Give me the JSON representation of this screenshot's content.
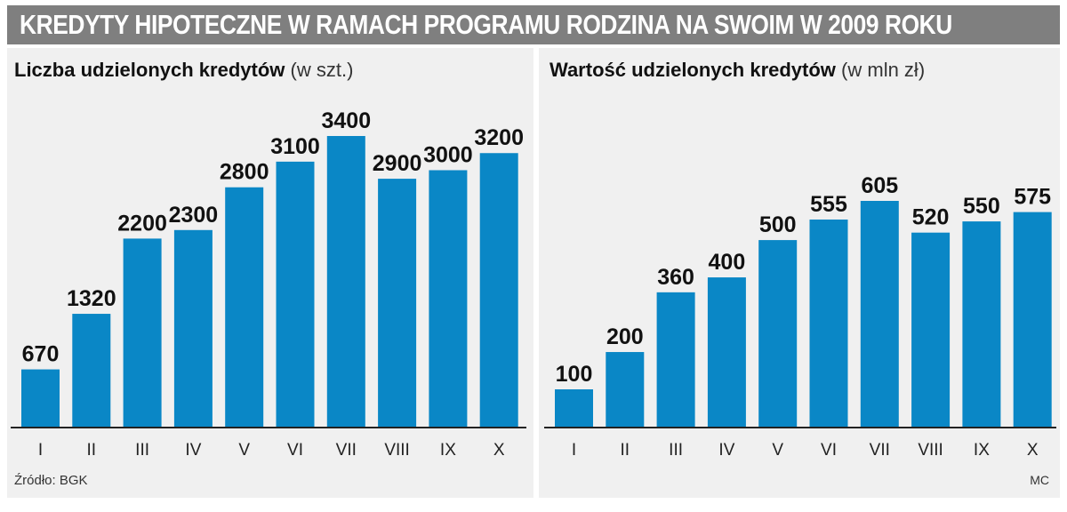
{
  "title": "KREDYTY HIPOTECZNE W RAMACH PROGRAMU RODZINA NA SWOIM W 2009 ROKU",
  "source": "Źródło: BGK",
  "credit": "MC",
  "colors": {
    "bar": "#0a87c6",
    "title_bar": "#7f7f7f",
    "panel": "#f0f0f0",
    "axis": "#222222"
  },
  "chart_data": [
    {
      "type": "bar",
      "title": "Liczba udzielonych kredytów",
      "unit": "(w szt.)",
      "categories": [
        "I",
        "II",
        "III",
        "IV",
        "V",
        "VI",
        "VII",
        "VIII",
        "IX",
        "X"
      ],
      "values": [
        670,
        1320,
        2200,
        2300,
        2800,
        3100,
        3400,
        2900,
        3000,
        3200
      ],
      "data_labels": [
        "670",
        "1320",
        "2200",
        "2300",
        "2800",
        "3100",
        "3400",
        "2900",
        "3000",
        "3200"
      ],
      "ylim": [
        0,
        3400
      ]
    },
    {
      "type": "bar",
      "title": "Wartość udzielonych kredytów",
      "unit": "(w mln zł)",
      "categories": [
        "I",
        "II",
        "III",
        "IV",
        "V",
        "VI",
        "VII",
        "VIII",
        "IX",
        "X"
      ],
      "values": [
        100,
        200,
        360,
        400,
        500,
        555,
        605,
        520,
        550,
        575
      ],
      "data_labels": [
        "100",
        "200",
        "360",
        "400",
        "500",
        "555",
        "605",
        "520",
        "550",
        "575"
      ],
      "ylim": [
        0,
        605
      ]
    }
  ]
}
